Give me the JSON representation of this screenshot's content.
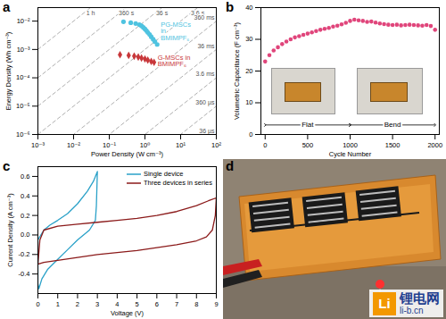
{
  "chart_data": [
    {
      "panel": "a",
      "type": "scatter",
      "log": true,
      "x_label": "Power Density (W cm⁻³)",
      "y_label": "Energy Density (Wh cm⁻³)",
      "xlim": [
        0.001,
        100
      ],
      "ylim": [
        1e-06,
        0.03
      ],
      "xticks": [
        {
          "value": 0.001,
          "label": "10⁻³"
        },
        {
          "value": 0.01,
          "label": "10⁻²"
        },
        {
          "value": 0.1,
          "label": "10⁻¹"
        },
        {
          "value": 1,
          "label": "10⁰"
        },
        {
          "value": 10,
          "label": "10¹"
        },
        {
          "value": 100,
          "label": "10²"
        }
      ],
      "yticks": [
        {
          "value": 1e-06,
          "label": "10⁻⁶"
        },
        {
          "value": 1e-05,
          "label": "10⁻⁵"
        },
        {
          "value": 0.0001,
          "label": "10⁻⁴"
        },
        {
          "value": 0.001,
          "label": "10⁻³"
        },
        {
          "value": 0.01,
          "label": "10⁻²"
        }
      ],
      "series": [
        {
          "name": "PG-MSCs in BMIMPF₆",
          "color": "#4fc3e0",
          "marker": "circle",
          "x": [
            0.25,
            0.4,
            0.55,
            0.7,
            0.8,
            0.9,
            1.0,
            1.1,
            1.2,
            1.35,
            1.5,
            1.7,
            1.9,
            2.2
          ],
          "values": [
            0.0095,
            0.0088,
            0.0082,
            0.0075,
            0.0068,
            0.006,
            0.0053,
            0.0046,
            0.004,
            0.0034,
            0.0028,
            0.0023,
            0.0019,
            0.0015
          ]
        },
        {
          "name": "G-MSCs in BMIMPF₆",
          "color": "#c8373a",
          "marker": "diamond",
          "x": [
            0.2,
            0.35,
            0.5,
            0.65,
            0.8,
            1.0,
            1.2,
            1.5,
            1.8
          ],
          "values": [
            0.00065,
            0.00062,
            0.00058,
            0.00054,
            0.0005,
            0.00046,
            0.00042,
            0.00038,
            0.00035
          ]
        }
      ],
      "time_lines": [
        {
          "label": "1 h",
          "hours": 1
        },
        {
          "label": "360 s",
          "hours": 0.1
        },
        {
          "label": "36 s",
          "hours": 0.01
        },
        {
          "label": "3.6 s",
          "hours": 0.001
        },
        {
          "label": "360 ms",
          "hours": 0.0001
        },
        {
          "label": "36 ms",
          "hours": 1e-05
        },
        {
          "label": "3.6 ms",
          "hours": 1e-06
        },
        {
          "label": "360 µs",
          "hours": 1e-07
        },
        {
          "label": "36 µs",
          "hours": 1e-08
        }
      ]
    },
    {
      "panel": "b",
      "type": "scatter",
      "x_label": "Cycle Number",
      "y_label": "Volumetric Capacitance (F cm⁻³)",
      "xlim": [
        -50,
        2050
      ],
      "ylim": [
        0,
        40
      ],
      "xticks": [
        0,
        500,
        1000,
        1500,
        2000
      ],
      "yticks": [
        0,
        10,
        20,
        30,
        40
      ],
      "series": [
        {
          "name": "Volumetric Capacitance",
          "color": "#e0457b",
          "marker": "circle",
          "x": [
            0,
            50,
            100,
            150,
            200,
            250,
            300,
            350,
            400,
            450,
            500,
            550,
            600,
            650,
            700,
            750,
            800,
            850,
            900,
            950,
            1000,
            1050,
            1100,
            1150,
            1200,
            1250,
            1300,
            1350,
            1400,
            1450,
            1500,
            1550,
            1600,
            1650,
            1700,
            1750,
            1800,
            1850,
            1900,
            1950,
            2000
          ],
          "values": [
            23,
            25,
            26.5,
            27.5,
            28.5,
            29.3,
            30,
            30.6,
            31,
            31.4,
            31.8,
            32.2,
            32.6,
            33,
            33.3,
            33.6,
            34,
            34.3,
            34.7,
            35.2,
            35.8,
            36.2,
            36,
            35.8,
            35.5,
            35.6,
            35.3,
            35,
            34.8,
            34.6,
            34.5,
            34.6,
            34.4,
            34.5,
            34.6,
            34.5,
            34.4,
            34.3,
            34.5,
            34.2,
            33
          ]
        }
      ],
      "annotations": [
        {
          "text": "Flat",
          "x_range": [
            0,
            1000
          ],
          "y": 3
        },
        {
          "text": "Bend",
          "x_range": [
            1000,
            2000
          ],
          "y": 3
        }
      ]
    },
    {
      "panel": "c",
      "type": "line",
      "legend": "top-right",
      "x_label": "Voltage (V)",
      "y_label": "Current Density (A cm⁻³)",
      "xlim": [
        0,
        9
      ],
      "ylim": [
        -0.6,
        0.7
      ],
      "xticks": [
        0,
        1,
        2,
        3,
        4,
        5,
        6,
        7,
        8,
        9
      ],
      "yticks": [
        -0.4,
        -0.2,
        {
          "value": 0,
          "label": "0.0"
        },
        0.2,
        0.4,
        0.6
      ],
      "series": [
        {
          "name": "Single device",
          "color": "#2aa1c8",
          "x": [
            0,
            0.3,
            0.6,
            1,
            1.5,
            2,
            2.5,
            2.8,
            3,
            2.95,
            2.9,
            2.6,
            2,
            1.5,
            1,
            0.5,
            0.2,
            0.05,
            0,
            0
          ],
          "values": [
            -0.05,
            0.05,
            0.1,
            0.15,
            0.22,
            0.32,
            0.45,
            0.55,
            0.65,
            0.3,
            0.15,
            0.05,
            -0.05,
            -0.15,
            -0.25,
            -0.35,
            -0.45,
            -0.55,
            -0.5,
            -0.05
          ]
        },
        {
          "name": "Three devices in series",
          "color": "#8b1a1a",
          "x": [
            0,
            0.1,
            0.3,
            1,
            2,
            3,
            4,
            5,
            6,
            7,
            8,
            8.6,
            9,
            8.95,
            8.8,
            8.5,
            8,
            7,
            6,
            5,
            4,
            3,
            2,
            1,
            0.3,
            0
          ],
          "values": [
            -0.3,
            -0.05,
            0.05,
            0.09,
            0.11,
            0.13,
            0.15,
            0.17,
            0.2,
            0.24,
            0.3,
            0.35,
            0.38,
            0.2,
            0.05,
            -0.02,
            -0.06,
            -0.1,
            -0.13,
            -0.16,
            -0.18,
            -0.2,
            -0.23,
            -0.26,
            -0.28,
            -0.3
          ]
        }
      ]
    }
  ],
  "photo": {
    "panel": "d"
  },
  "watermark": {
    "logo": "Li",
    "text": "锂电网",
    "url": "li-b.cn"
  }
}
